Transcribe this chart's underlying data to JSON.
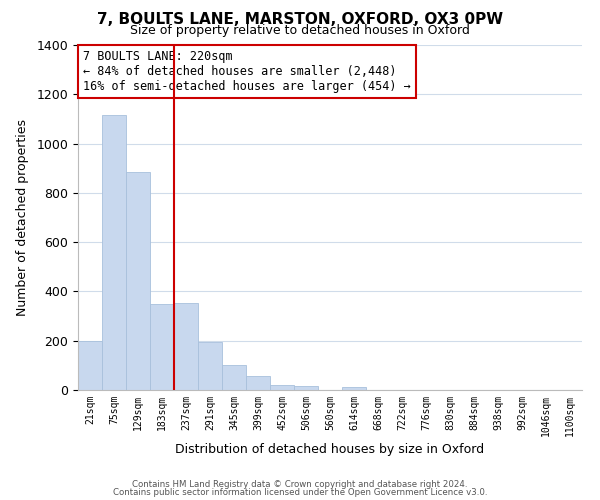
{
  "title": "7, BOULTS LANE, MARSTON, OXFORD, OX3 0PW",
  "subtitle": "Size of property relative to detached houses in Oxford",
  "xlabel": "Distribution of detached houses by size in Oxford",
  "ylabel": "Number of detached properties",
  "bar_color": "#c8d8ee",
  "bar_edge_color": "#a8c0dc",
  "categories": [
    "21sqm",
    "75sqm",
    "129sqm",
    "183sqm",
    "237sqm",
    "291sqm",
    "345sqm",
    "399sqm",
    "452sqm",
    "506sqm",
    "560sqm",
    "614sqm",
    "668sqm",
    "722sqm",
    "776sqm",
    "830sqm",
    "884sqm",
    "938sqm",
    "992sqm",
    "1046sqm",
    "1100sqm"
  ],
  "values": [
    200,
    1115,
    885,
    350,
    355,
    195,
    100,
    57,
    22,
    15,
    0,
    12,
    0,
    0,
    0,
    0,
    0,
    0,
    0,
    0,
    0
  ],
  "property_line_label": "7 BOULTS LANE: 220sqm",
  "annotation_line1": "← 84% of detached houses are smaller (2,448)",
  "annotation_line2": "16% of semi-detached houses are larger (454) →",
  "annotation_box_color": "#ffffff",
  "annotation_box_edge_color": "#cc0000",
  "property_line_color": "#cc0000",
  "ylim": [
    0,
    1400
  ],
  "yticks": [
    0,
    200,
    400,
    600,
    800,
    1000,
    1200,
    1400
  ],
  "footer1": "Contains HM Land Registry data © Crown copyright and database right 2024.",
  "footer2": "Contains public sector information licensed under the Open Government Licence v3.0.",
  "background_color": "#ffffff",
  "grid_color": "#d0dcea"
}
